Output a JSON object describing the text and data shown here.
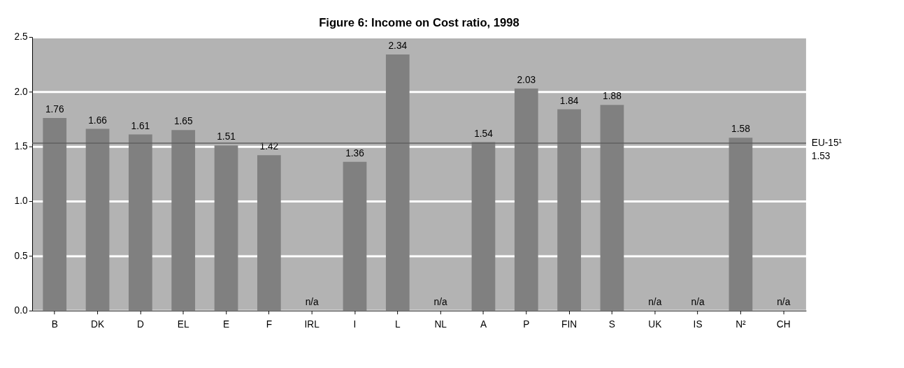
{
  "chart_data": {
    "type": "bar",
    "title": "Figure 6: Income on Cost ratio, 1998",
    "categories": [
      "B",
      "DK",
      "D",
      "EL",
      "E",
      "F",
      "IRL",
      "I",
      "L",
      "NL",
      "A",
      "P",
      "FIN",
      "S",
      "UK",
      "IS",
      "N²",
      "CH"
    ],
    "values": [
      1.76,
      1.66,
      1.61,
      1.65,
      1.51,
      1.42,
      null,
      1.36,
      2.34,
      null,
      1.54,
      2.03,
      1.84,
      1.88,
      null,
      null,
      1.58,
      null
    ],
    "value_labels": [
      "1.76",
      "1.66",
      "1.61",
      "1.65",
      "1.51",
      "1.42",
      "n/a",
      "1.36",
      "2.34",
      "n/a",
      "1.54",
      "2.03",
      "1.84",
      "1.88",
      "n/a",
      "n/a",
      "1.58",
      "n/a"
    ],
    "color": "#808080",
    "ylim": [
      0,
      2.5
    ],
    "yticks": [
      {
        "value": 0,
        "label": "0.0"
      },
      {
        "value": 0.5,
        "label": "0.5"
      },
      {
        "value": 1,
        "label": "1.0"
      },
      {
        "value": 1.5,
        "label": "1.5"
      },
      {
        "value": 2,
        "label": "2.0"
      },
      {
        "value": 2.5,
        "label": "2.5"
      }
    ],
    "grid": "y",
    "ref_lines": [
      {
        "axis": "y",
        "value": 1.53,
        "label": "EU-15¹ 1.53",
        "color": "#606060"
      }
    ]
  }
}
